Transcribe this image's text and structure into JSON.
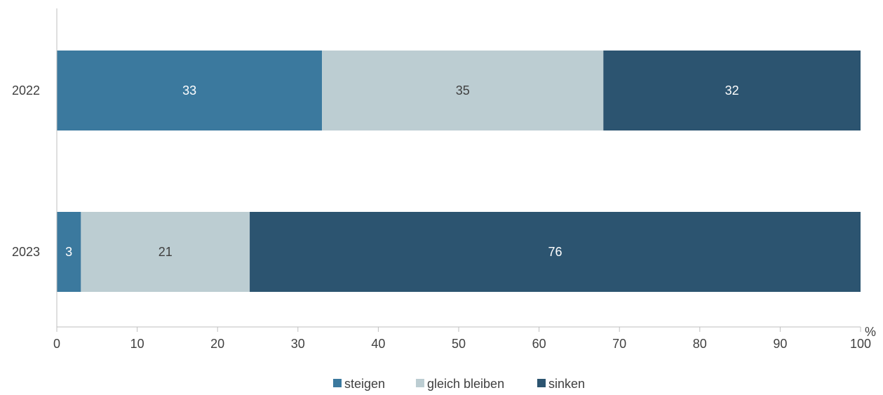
{
  "chart_data": {
    "type": "bar",
    "orientation": "horizontal",
    "stacked": true,
    "categories": [
      "2022",
      "2023"
    ],
    "series": [
      {
        "name": "steigen",
        "values": [
          33,
          3
        ],
        "color": "#3b799e",
        "label_color": "#ffffff"
      },
      {
        "name": "gleich bleiben",
        "values": [
          35,
          21
        ],
        "color": "#bccdd2",
        "label_color": "#404040"
      },
      {
        "name": "sinken",
        "values": [
          32,
          76
        ],
        "color": "#2c5470",
        "label_color": "#ffffff"
      }
    ],
    "xlim": [
      0,
      100
    ],
    "xticks": [
      "0",
      "10",
      "20",
      "30",
      "40",
      "50",
      "60",
      "70",
      "80",
      "90",
      "100"
    ],
    "x_unit": "%",
    "title": "",
    "xlabel": "",
    "ylabel": "",
    "grid": false,
    "legend_position": "bottom"
  }
}
